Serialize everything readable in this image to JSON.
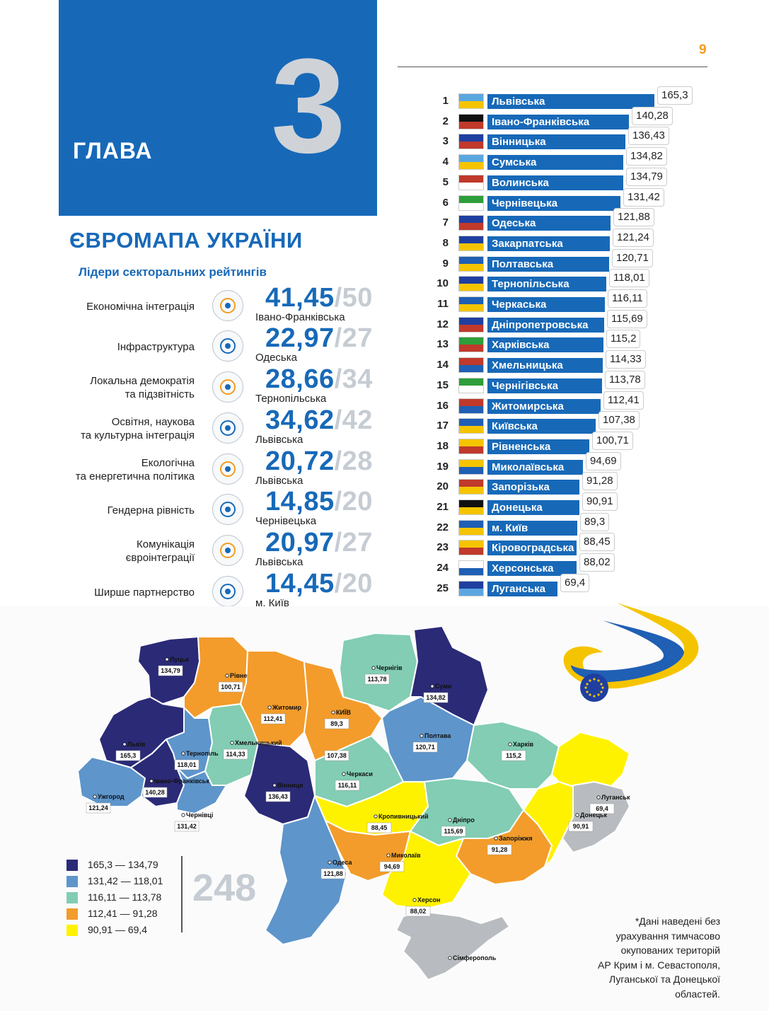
{
  "header": {
    "chapter_label": "ГЛАВА",
    "chapter_number": "3",
    "page_number": "9"
  },
  "title": "ЄВРОМАПА УКРАЇНИ",
  "subtitle": "Лідери секторальних рейтингів",
  "sectors": [
    {
      "label": "Економічна інтеграція",
      "icon": "economy-icon",
      "score": "41,45",
      "max": "/50",
      "region": "Івано-Франківська"
    },
    {
      "label": "Інфраструктура",
      "icon": "infrastructure-icon",
      "score": "22,97",
      "max": "/27",
      "region": "Одеська"
    },
    {
      "label": "Локальна демократія\nта  підзвітність",
      "icon": "democracy-icon",
      "score": "28,66",
      "max": "/34",
      "region": "Тернопільська"
    },
    {
      "label": "Освітня, наукова\nта культурна інтеграція",
      "icon": "education-icon",
      "score": "34,62",
      "max": "/42",
      "region": "Львівська"
    },
    {
      "label": "Екологічна\nта енергетична політика",
      "icon": "ecology-icon",
      "score": "20,72",
      "max": "/28",
      "region": "Львівська"
    },
    {
      "label": "Гендерна рівність",
      "icon": "gender-icon",
      "score": "14,85",
      "max": "/20",
      "region": "Чернівецька"
    },
    {
      "label": "Комунікація\nєвроінтеграції",
      "icon": "communication-icon",
      "score": "20,97",
      "max": "/27",
      "region": "Львівська"
    },
    {
      "label": "Ширше партнерство",
      "icon": "partnership-icon",
      "score": "14,45",
      "max": "/20",
      "region": "м. Київ"
    }
  ],
  "ranking": [
    {
      "rank": "1",
      "name": "Львівська",
      "value": 165.3,
      "label": "165,3"
    },
    {
      "rank": "2",
      "name": "Івано-Франківська",
      "value": 140.28,
      "label": "140,28"
    },
    {
      "rank": "3",
      "name": "Вінницька",
      "value": 136.43,
      "label": "136,43"
    },
    {
      "rank": "4",
      "name": "Сумська",
      "value": 134.82,
      "label": "134,82"
    },
    {
      "rank": "5",
      "name": "Волинська",
      "value": 134.79,
      "label": "134,79"
    },
    {
      "rank": "6",
      "name": "Чернівецька",
      "value": 131.42,
      "label": "131,42"
    },
    {
      "rank": "7",
      "name": "Одеська",
      "value": 121.88,
      "label": "121,88"
    },
    {
      "rank": "8",
      "name": "Закарпатська",
      "value": 121.24,
      "label": "121,24"
    },
    {
      "rank": "9",
      "name": "Полтавська",
      "value": 120.71,
      "label": "120,71"
    },
    {
      "rank": "10",
      "name": "Тернопільська",
      "value": 118.01,
      "label": "118,01"
    },
    {
      "rank": "11",
      "name": "Черкаська",
      "value": 116.11,
      "label": "116,11"
    },
    {
      "rank": "12",
      "name": "Дніпропетровська",
      "value": 115.69,
      "label": "115,69"
    },
    {
      "rank": "13",
      "name": "Харківська",
      "value": 115.2,
      "label": "115,2"
    },
    {
      "rank": "14",
      "name": "Хмельницька",
      "value": 114.33,
      "label": "114,33"
    },
    {
      "rank": "15",
      "name": "Чернігівська",
      "value": 113.78,
      "label": "113,78"
    },
    {
      "rank": "16",
      "name": "Житомирська",
      "value": 112.41,
      "label": "112,41"
    },
    {
      "rank": "17",
      "name": "Київська",
      "value": 107.38,
      "label": "107,38"
    },
    {
      "rank": "18",
      "name": "Рівненська",
      "value": 100.71,
      "label": "100,71"
    },
    {
      "rank": "19",
      "name": "Миколаївська",
      "value": 94.69,
      "label": "94,69"
    },
    {
      "rank": "20",
      "name": "Запорізька",
      "value": 91.28,
      "label": "91,28"
    },
    {
      "rank": "21",
      "name": "Донецька",
      "value": 90.91,
      "label": "90,91"
    },
    {
      "rank": "22",
      "name": "м. Київ",
      "value": 89.3,
      "label": "89,3"
    },
    {
      "rank": "23",
      "name": "Кіровоградська",
      "value": 88.45,
      "label": "88,45"
    },
    {
      "rank": "24",
      "name": "Херсонська",
      "value": 88.02,
      "label": "88,02"
    },
    {
      "rank": "25",
      "name": "Луганська",
      "value": 69.4,
      "label": "69,4"
    }
  ],
  "map": {
    "regions": [
      {
        "city": "Луцьк",
        "value": "134,79",
        "tier": 1
      },
      {
        "city": "Рівне",
        "value": "100,71",
        "tier": 4
      },
      {
        "city": "Житомир",
        "value": "112,41",
        "tier": 4
      },
      {
        "city": "Чернігів",
        "value": "113,78",
        "tier": 3
      },
      {
        "city": "Суми",
        "value": "134,82",
        "tier": 1
      },
      {
        "city": "КИЇВ",
        "value": "89,3",
        "tier": 5
      },
      {
        "city": "",
        "value": "107,38",
        "tier": 4
      },
      {
        "city": "Львів",
        "value": "165,3",
        "tier": 1
      },
      {
        "city": "Тернопіль",
        "value": "118,01",
        "tier": 2
      },
      {
        "city": "Хмельницький",
        "value": "114,33",
        "tier": 3
      },
      {
        "city": "Вінниця",
        "value": "136,43",
        "tier": 1
      },
      {
        "city": "Черкаси",
        "value": "116,11",
        "tier": 3
      },
      {
        "city": "Полтава",
        "value": "120,71",
        "tier": 2
      },
      {
        "city": "Харків",
        "value": "115,2",
        "tier": 3
      },
      {
        "city": "Ужгород",
        "value": "121,24",
        "tier": 2
      },
      {
        "city": "Івано-Франківськ",
        "value": "140,28",
        "tier": 1
      },
      {
        "city": "Чернівці",
        "value": "131,42",
        "tier": 2
      },
      {
        "city": "Кропивницький",
        "value": "88,45",
        "tier": 5
      },
      {
        "city": "Дніпро",
        "value": "115,69",
        "tier": 3
      },
      {
        "city": "Луганськ",
        "value": "69,4",
        "tier": 5
      },
      {
        "city": "Донецьк",
        "value": "90,91",
        "tier": 5
      },
      {
        "city": "Запоріжжя",
        "value": "91,28",
        "tier": 4
      },
      {
        "city": "Одеса",
        "value": "121,88",
        "tier": 2
      },
      {
        "city": "Миколаїв",
        "value": "94,69",
        "tier": 4
      },
      {
        "city": "Херсон",
        "value": "88,02",
        "tier": 5
      },
      {
        "city": "Сімферополь",
        "value": "",
        "tier": 0
      }
    ]
  },
  "legend": [
    {
      "range": "165,3 — 134,79",
      "color": "#2b2a77"
    },
    {
      "range": "131,42 — 118,01",
      "color": "#5e95cb"
    },
    {
      "range": "116,11 — 113,78",
      "color": "#82cdb3"
    },
    {
      "range": "112,41 — 91,28",
      "color": "#f39c2b"
    },
    {
      "range": "90,91 — 69,4",
      "color": "#fff200"
    }
  ],
  "total": "248",
  "footnote": "*Дані наведені без\nурахування тимчасово\nокупованих територій\nАР Крим і м. Севастополя,\nЛуганської та Донецької\nобластей.",
  "colors": {
    "brand_blue": "#1769b8",
    "accent_orange": "#f39c1f",
    "occupied_grey": "#b8bcc1"
  }
}
